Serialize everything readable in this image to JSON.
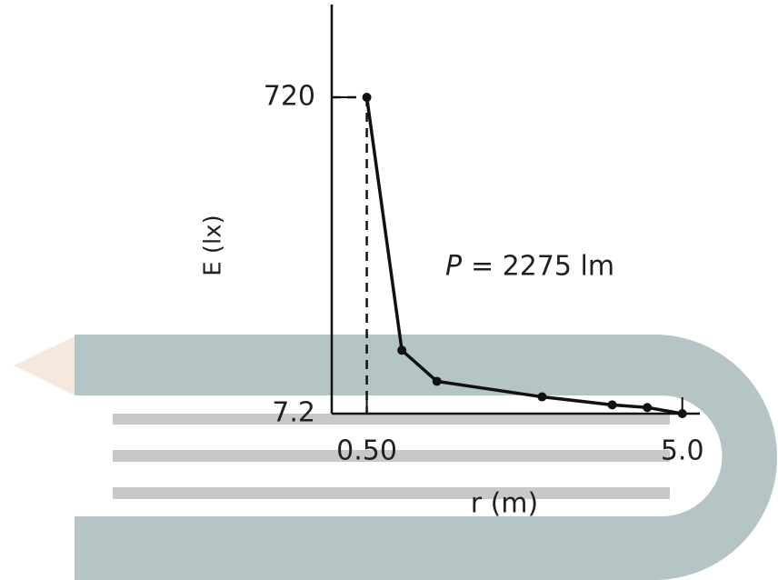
{
  "chart_data": {
    "type": "line",
    "x": [
      0.5,
      1.0,
      1.5,
      3.0,
      4.0,
      4.5,
      5.0
    ],
    "series": [
      {
        "color": "#111111",
        "values": [
          720,
          150,
          80,
          45,
          27,
          21,
          7.2
        ]
      }
    ],
    "xlim": [
      0,
      5.25
    ],
    "ylim": [
      7.2,
      929
    ],
    "xticks": [
      {
        "value": 0.5,
        "label": "0.50"
      },
      {
        "value": 5.0,
        "label": "5.0"
      }
    ],
    "yticks": [
      7.2,
      720
    ],
    "x_label": "r (m)",
    "y_label": "E (lx)",
    "annotation_symbol": "P",
    "annotation_text": "= 2275 lm"
  }
}
